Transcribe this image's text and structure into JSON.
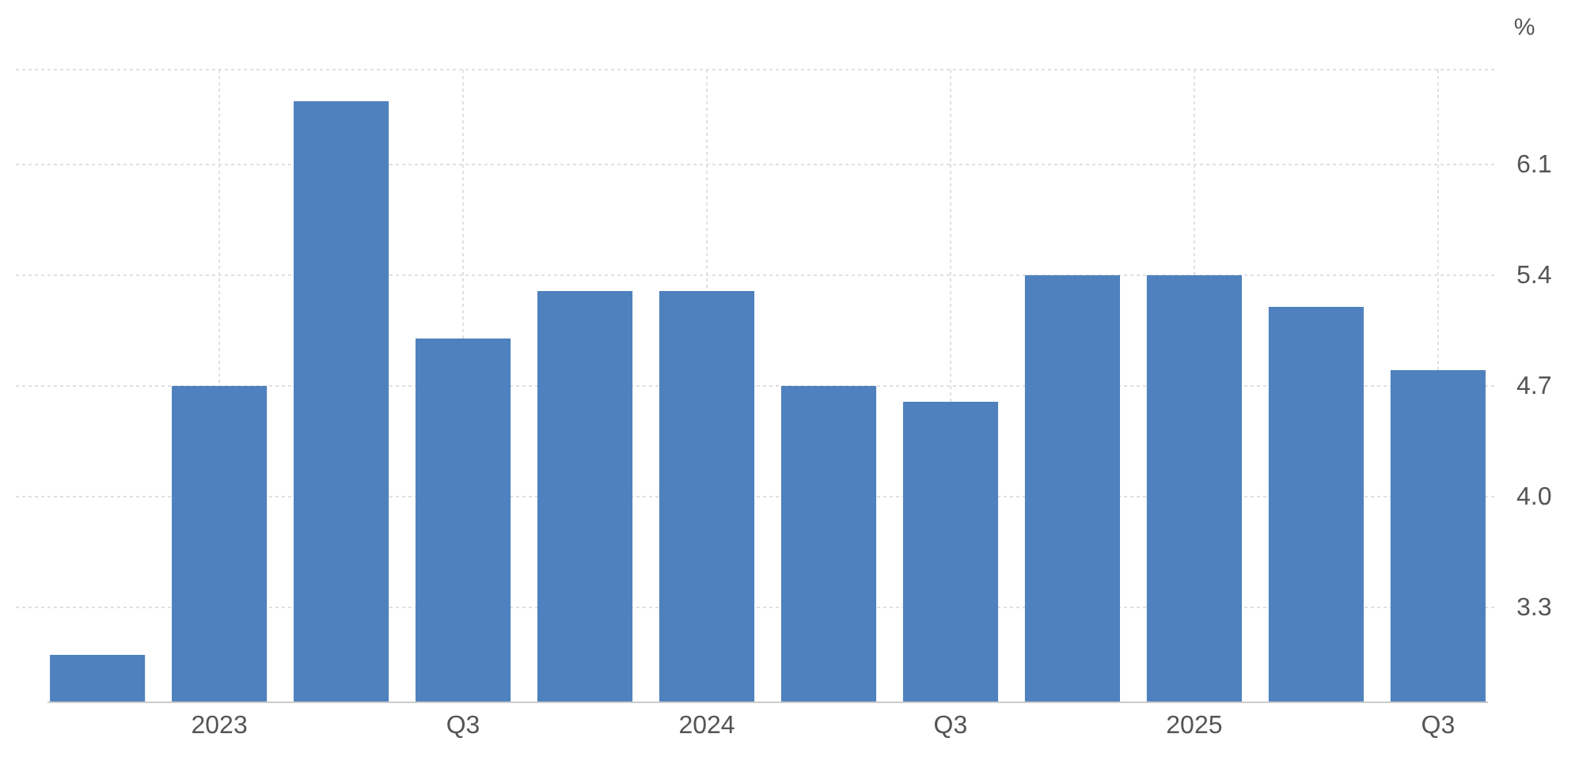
{
  "chart_data": {
    "type": "bar",
    "ylabel": "%",
    "categories": [
      null,
      "2023",
      null,
      "Q3",
      null,
      "2024",
      null,
      "Q3",
      null,
      "2025",
      null,
      "Q3"
    ],
    "values": [
      3.0,
      4.7,
      6.5,
      5.0,
      5.3,
      5.3,
      4.7,
      4.6,
      5.4,
      5.4,
      5.2,
      4.8
    ],
    "color": "#4e81bd",
    "ylim": [
      2.7,
      6.7
    ],
    "yticks": [
      3.3,
      {
        "value": 4,
        "label": "4.0"
      },
      4.7,
      5.4,
      6.1
    ],
    "grid": true
  }
}
